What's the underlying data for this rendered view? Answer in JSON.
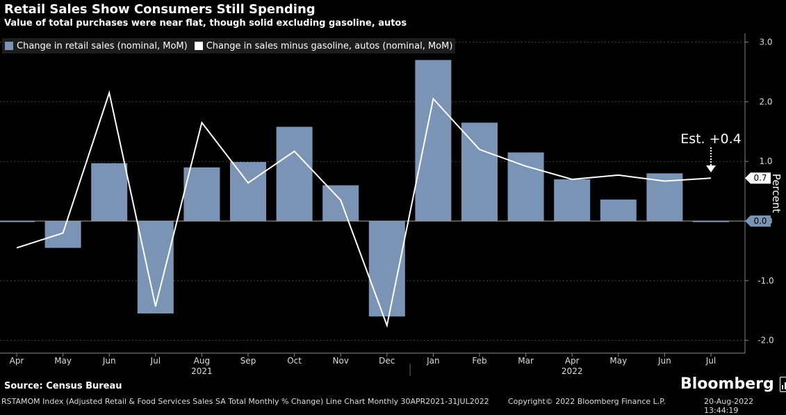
{
  "header": {
    "title": "Retail Sales Show Consumers Still Spending",
    "subtitle": "Value of total purchases were near flat, though solid excluding gasoline, autos"
  },
  "legend": {
    "items": [
      {
        "label": "Change in retail sales (nominal, MoM)",
        "color": "#7b94b6"
      },
      {
        "label": "Change in sales minus gasoline, autos (nominal, MoM)",
        "color": "#ffffff"
      }
    ]
  },
  "annotation": {
    "text": "Est. +0.4",
    "icon": "down-arrow-icon"
  },
  "footer": {
    "source": "Source: Census Bureau",
    "ticker": "RSTAMOM Index (Adjusted Retail & Food Services Sales SA Total Monthly % Change) Line Chart  Monthly 30APR2021-31JUL2022",
    "copyright": "Copyright© 2022 Bloomberg Finance L.P.",
    "timestamp": "20-Aug-2022 13:44:19",
    "brand": "Bloomberg"
  },
  "chart_data": {
    "type": "bar",
    "categories": [
      "Apr",
      "May",
      "Jun",
      "Jul",
      "Aug",
      "Sep",
      "Oct",
      "Nov",
      "Dec",
      "Jan",
      "Feb",
      "Mar",
      "Apr",
      "May",
      "Jun",
      "Jul"
    ],
    "year_labels": [
      {
        "label": "2021",
        "at": 4
      },
      {
        "label": "2022",
        "at": 12
      }
    ],
    "series": [
      {
        "name": "Change in retail sales (nominal, MoM)",
        "type": "bar",
        "color": "#7b94b6",
        "values": [
          0.0,
          -0.45,
          0.97,
          -1.55,
          0.9,
          0.99,
          1.58,
          0.6,
          -1.6,
          2.7,
          1.65,
          1.15,
          0.7,
          0.36,
          0.8,
          0.0
        ]
      },
      {
        "name": "Change in sales minus gasoline, autos (nominal, MoM)",
        "type": "line",
        "color": "#ffffff",
        "values": [
          -0.45,
          -0.2,
          2.15,
          -1.43,
          1.65,
          0.64,
          1.17,
          0.35,
          -1.75,
          2.05,
          1.2,
          0.92,
          0.7,
          0.77,
          0.67,
          0.72
        ]
      }
    ],
    "ylabel": "Percent",
    "ylim": [
      -2.0,
      3.0
    ],
    "yticks": [
      -2.0,
      -1.0,
      0.0,
      1.0,
      2.0,
      3.0
    ],
    "last_value_labels": [
      "0.7",
      "0.0"
    ],
    "grid": true,
    "legend_position": "top-left"
  }
}
